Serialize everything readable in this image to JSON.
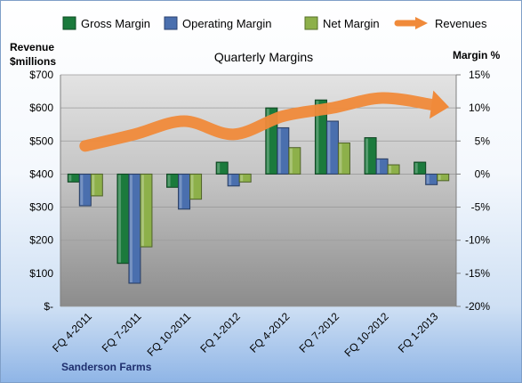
{
  "chart_data": {
    "type": "bar",
    "title": "Quarterly Margins",
    "footer": "Sanderson Farms",
    "categories": [
      "FQ 4-2011",
      "FQ 7-2011",
      "FQ 10-2011",
      "FQ 1-2012",
      "FQ 4-2012",
      "FQ 7-2012",
      "FQ 10-2012",
      "FQ 1-2013"
    ],
    "left_axis": {
      "label_line1": "Revenue",
      "label_line2": "$millions",
      "min": 0,
      "max": 700,
      "step": 100,
      "tick_labels": [
        "$-",
        "$100",
        "$200",
        "$300",
        "$400",
        "$500",
        "$600",
        "$700"
      ]
    },
    "right_axis": {
      "label": "Margin %",
      "min": -20,
      "max": 15,
      "step": 5,
      "tick_labels": [
        "-20%",
        "-15%",
        "-10%",
        "-5%",
        "0%",
        "5%",
        "10%",
        "15%"
      ]
    },
    "series": [
      {
        "name": "Gross Margin",
        "type": "bar",
        "axis": "right",
        "color": "#1b7a3c",
        "values": [
          -1.2,
          -13.5,
          -2.0,
          1.8,
          10.0,
          11.2,
          5.5,
          1.8
        ]
      },
      {
        "name": "Operating Margin",
        "type": "bar",
        "axis": "right",
        "color": "#4a6fae",
        "values": [
          -4.8,
          -16.5,
          -5.3,
          -1.8,
          7.0,
          8.0,
          2.3,
          -1.6
        ]
      },
      {
        "name": "Net Margin",
        "type": "bar",
        "axis": "right",
        "color": "#8db04a",
        "values": [
          -3.3,
          -11.0,
          -3.8,
          -1.2,
          4.0,
          4.7,
          1.4,
          -1.0
        ]
      },
      {
        "name": "Revenues",
        "type": "line",
        "axis": "left",
        "color": "#f08a3a",
        "values": [
          485,
          520,
          560,
          520,
          575,
          600,
          630,
          610
        ]
      }
    ],
    "legend_position": "top"
  }
}
